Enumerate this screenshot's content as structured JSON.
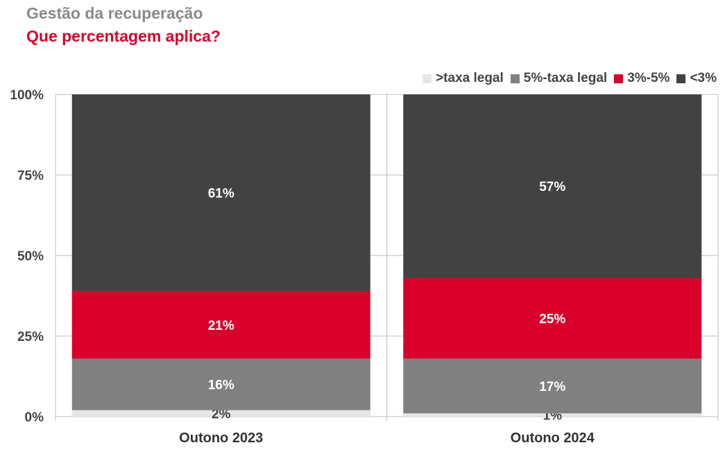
{
  "header": {
    "title": "Gestão da recuperação",
    "subtitle": "Que percentagem aplica?"
  },
  "colors": {
    "title": "#8a8a8a",
    "subtitle": "#d9002b",
    "grid": "#bdbdbd"
  },
  "chart_data": {
    "type": "bar",
    "stacked": true,
    "categories": [
      "Outono 2023",
      "Outono 2024"
    ],
    "series": [
      {
        "name": ">taxa legal",
        "color": "#e6e6e6",
        "label_color": "#444444",
        "values": [
          2,
          1
        ],
        "labels": [
          "2%",
          "1%"
        ]
      },
      {
        "name": "5%-taxa legal",
        "color": "#808080",
        "label_color": "#ffffff",
        "values": [
          16,
          17
        ],
        "labels": [
          "16%",
          "17%"
        ]
      },
      {
        "name": "3%-5%",
        "color": "#d9002b",
        "label_color": "#ffffff",
        "values": [
          21,
          25
        ],
        "labels": [
          "21%",
          "25%"
        ]
      },
      {
        "name": "<3%",
        "color": "#424242",
        "label_color": "#ffffff",
        "values": [
          61,
          57
        ],
        "labels": [
          "61%",
          "57%"
        ]
      }
    ],
    "yticks": [
      "0%",
      "25%",
      "50%",
      "75%",
      "100%"
    ],
    "ylim": [
      0,
      100
    ],
    "grid": true,
    "legend_position": "top-right"
  }
}
